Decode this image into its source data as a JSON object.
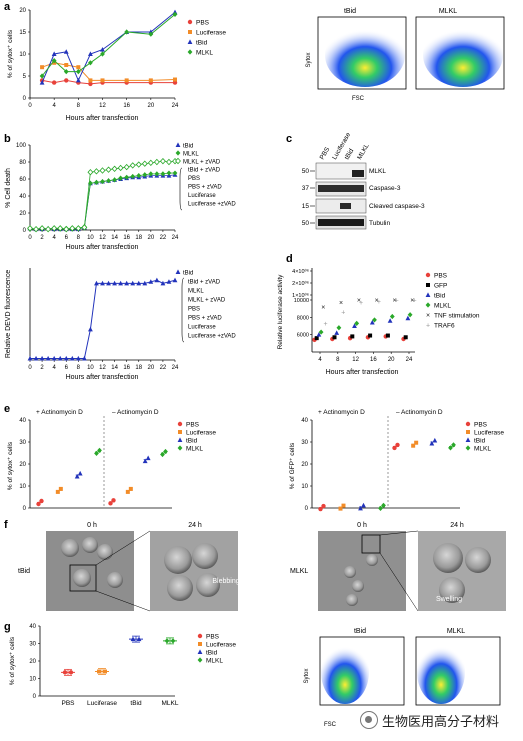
{
  "panel_letters": [
    "a",
    "b",
    "c",
    "d",
    "e",
    "f",
    "g"
  ],
  "colors": {
    "PBS": "#e8413a",
    "Luciferase": "#f28c28",
    "tBid": "#2233bb",
    "MLKL": "#2aa82a",
    "tnf": "#222222",
    "traf6": "#999999",
    "grey_axis": "#000000"
  },
  "panel_a": {
    "ylabel": "% of sytox⁺ cells",
    "xlabel": "Hours after transfection",
    "legend": [
      "PBS",
      "Luciferase",
      "tBid",
      "MLKL"
    ],
    "flow_titles": [
      "tBid",
      "MLKL"
    ],
    "flow_ylabel": "Sytox",
    "flow_xlabel": "FSC",
    "yticks": [
      "0",
      "5",
      "10",
      "15",
      "20"
    ],
    "xticks": [
      "0",
      "4",
      "8",
      "12",
      "16",
      "20",
      "24"
    ]
  },
  "panel_b": {
    "top_ylabel": "% Cell death",
    "bottom_ylabel": "Relative DEVD fluorescence",
    "xlabel": "Hours after transfection",
    "top_yticks": [
      "0",
      "20",
      "40",
      "60",
      "80",
      "100"
    ],
    "xticks": [
      "0",
      "2",
      "4",
      "6",
      "8",
      "10",
      "12",
      "14",
      "16",
      "18",
      "20",
      "22",
      "24"
    ],
    "top_legend_markers": [
      "tBid",
      "MLKL",
      "MLKL + zVAD"
    ],
    "top_legend_rest": [
      "tBid + zVAD",
      "PBS",
      "PBS + zVAD",
      "Luciferase",
      "Luciferase +zVAD"
    ],
    "bottom_legend": [
      "tBid",
      "tBid + zVAD",
      "MLKL",
      "MLKL + zVAD",
      "PBS",
      "PBS + zVAD",
      "Luciferase",
      "Luciferase +zVAD"
    ]
  },
  "panel_c": {
    "lanes": [
      "PBS",
      "Luciferase",
      "tBid",
      "MLKL"
    ],
    "mw": [
      "50",
      "37",
      "15",
      "50"
    ],
    "bands": [
      "MLKL",
      "Caspase-3",
      "Cleaved caspase-3",
      "Tubulin"
    ]
  },
  "panel_d": {
    "ylabel": "Relative luciferase activity",
    "xlabel": "Hours after transfection",
    "yticks": [
      "6000",
      "8000",
      "10000",
      "4×10⁰⁶",
      "2×10⁰⁶",
      "1×10⁰⁶"
    ],
    "xticks": [
      "4",
      "8",
      "12",
      "16",
      "20",
      "24"
    ],
    "legend": [
      "PBS",
      "GFP",
      "tBid",
      "MLKL",
      "TNF stimulation",
      "TRAF6"
    ]
  },
  "panel_e": {
    "left_ylabel": "% of sytox⁺ cells",
    "right_ylabel": "% of GFP⁺ cells",
    "left_headers": [
      "+ Actinomycin D",
      "– Actinomycin D"
    ],
    "right_headers": [
      "+ Actinomycin D",
      "– Actinomycin D"
    ],
    "left_yticks": [
      "0",
      "10",
      "20",
      "30",
      "40"
    ],
    "right_yticks": [
      "0",
      "10",
      "20",
      "30",
      "40"
    ],
    "legend_left": [
      "PBS",
      "Luciferase",
      "tBid",
      "MLKL"
    ],
    "legend_right": [
      "PBS",
      "Luciferase",
      "tBid",
      "MLKL"
    ]
  },
  "panel_f": {
    "left_time": [
      "0 h",
      "24 h"
    ],
    "right_time": [
      "0 h",
      "24 h"
    ],
    "left_label": "tBid",
    "right_label": "MLKL",
    "left_annotation": "Blebbing",
    "right_annotation": "Swelling"
  },
  "panel_g": {
    "ylabel": "% of sytox⁺ cells",
    "yticks": [
      "0",
      "10",
      "20",
      "30",
      "40"
    ],
    "categories": [
      "PBS",
      "Luciferase",
      "tBid",
      "MLKL"
    ],
    "legend": [
      "PBS",
      "Luciferase",
      "tBid",
      "MLKL"
    ],
    "flow_titles": [
      "tBid",
      "MLKL"
    ],
    "flow_ylabel": "Sytox",
    "flow_xlabel": "FSC"
  },
  "watermark": "生物医用高分子材料",
  "chart_data": [
    {
      "type": "line",
      "panel": "a",
      "x": [
        2,
        4,
        6,
        8,
        10,
        12,
        16,
        20,
        24
      ],
      "series": [
        {
          "name": "PBS",
          "values": [
            4,
            3.5,
            4,
            3.5,
            3.2,
            3.5,
            3.5,
            3.5,
            3.5
          ]
        },
        {
          "name": "Luciferase",
          "values": [
            7,
            8,
            7.5,
            7,
            4,
            4,
            4,
            4,
            4.2
          ]
        },
        {
          "name": "tBid",
          "values": [
            3.5,
            10,
            10.5,
            4,
            10,
            11,
            15,
            15,
            19.5
          ]
        },
        {
          "name": "MLKL",
          "values": [
            5,
            8.5,
            6,
            6,
            8,
            10,
            15,
            14.5,
            19
          ]
        }
      ],
      "xlabel": "Hours after transfection",
      "ylabel": "% of sytox⁺ cells",
      "ylim": [
        0,
        20
      ],
      "xlim": [
        0,
        24
      ]
    },
    {
      "type": "line",
      "panel": "b-top",
      "x": [
        0,
        1,
        2,
        3,
        4,
        5,
        6,
        7,
        8,
        9,
        10,
        11,
        12,
        13,
        14,
        15,
        16,
        17,
        18,
        19,
        20,
        21,
        22,
        23,
        24
      ],
      "series": [
        {
          "name": "tBid",
          "values": [
            2,
            1,
            1,
            2,
            1,
            1,
            1,
            1,
            1,
            3,
            55,
            56,
            57,
            58,
            59,
            60,
            61,
            62,
            62,
            63,
            64,
            64,
            64,
            64,
            65
          ]
        },
        {
          "name": "MLKL",
          "values": [
            1,
            1,
            2,
            1,
            2,
            1,
            2,
            1,
            2,
            4,
            55,
            56,
            57,
            58,
            59,
            61,
            62,
            63,
            64,
            65,
            66,
            66,
            66,
            67,
            67
          ]
        },
        {
          "name": "MLKL + zVAD",
          "values": [
            2,
            1,
            2,
            1,
            2,
            2,
            1,
            2,
            2,
            3,
            68,
            69,
            70,
            71,
            72,
            73,
            74,
            76,
            77,
            78,
            79,
            80,
            81,
            80,
            81
          ]
        }
      ],
      "xlabel": "Hours after transfection",
      "ylabel": "% Cell death",
      "ylim": [
        0,
        100
      ],
      "xlim": [
        0,
        24
      ]
    },
    {
      "type": "line",
      "panel": "b-bottom",
      "x": [
        0,
        1,
        2,
        3,
        4,
        5,
        6,
        7,
        8,
        9,
        10,
        11,
        12,
        13,
        14,
        15,
        16,
        17,
        18,
        19,
        20,
        21,
        22,
        23,
        24
      ],
      "series": [
        {
          "name": "tBid",
          "values": [
            0.05,
            0.05,
            0.05,
            0.05,
            0.05,
            0.05,
            0.05,
            0.05,
            0.05,
            0.05,
            1.0,
            2.5,
            2.5,
            2.5,
            2.5,
            2.5,
            2.5,
            2.5,
            2.5,
            2.5,
            2.55,
            2.6,
            2.5,
            2.55,
            2.6
          ]
        }
      ],
      "xlabel": "Hours after transfection",
      "ylabel": "Relative DEVD fluorescence",
      "xlim": [
        0,
        24
      ]
    },
    {
      "type": "scatter",
      "panel": "d",
      "x": [
        4,
        8,
        12,
        16,
        20,
        24
      ],
      "series": [
        {
          "name": "PBS",
          "values": [
            5400,
            5500,
            5600,
            5700,
            5800,
            5500
          ]
        },
        {
          "name": "GFP",
          "values": [
            5600,
            5700,
            5800,
            5900,
            5900,
            5700
          ]
        },
        {
          "name": "tBid",
          "values": [
            6000,
            6200,
            7000,
            7400,
            7600,
            7900
          ]
        },
        {
          "name": "MLKL",
          "values": [
            6300,
            6800,
            7300,
            7700,
            8100,
            8300
          ]
        },
        {
          "name": "TNF stimulation",
          "values": [
            9200,
            9700,
            10000,
            10000,
            10000,
            10000
          ]
        },
        {
          "name": "TRAF6",
          "values": [
            7300,
            8600,
            9700,
            9800,
            10000,
            10000
          ]
        }
      ],
      "xlabel": "Hours after transfection",
      "ylabel": "Relative luciferase activity"
    },
    {
      "type": "scatter",
      "panel": "e-left",
      "categories": [
        "PBS",
        "Luciferase",
        "tBid",
        "MLKL"
      ],
      "series": [
        {
          "name": "+ Actinomycin D",
          "values": [
            2.5,
            8,
            15,
            25.5
          ]
        },
        {
          "name": "– Actinomycin D",
          "values": [
            2.8,
            8,
            22,
            25
          ]
        }
      ],
      "ylabel": "% of sytox⁺ cells",
      "ylim": [
        0,
        40
      ]
    },
    {
      "type": "scatter",
      "panel": "e-right",
      "categories": [
        "PBS",
        "Luciferase",
        "tBid",
        "MLKL"
      ],
      "series": [
        {
          "name": "+ Actinomycin D",
          "values": [
            0.2,
            0.4,
            0.5,
            0.5
          ]
        },
        {
          "name": "– Actinomycin D",
          "values": [
            28,
            29,
            30,
            28
          ]
        }
      ],
      "ylabel": "% of GFP⁺ cells",
      "ylim": [
        0,
        40
      ]
    },
    {
      "type": "scatter",
      "panel": "g",
      "categories": [
        "PBS",
        "Luciferase",
        "tBid",
        "MLKL"
      ],
      "values": [
        13.5,
        14,
        32.5,
        31.5
      ],
      "ylabel": "% of sytox⁺ cells",
      "ylim": [
        0,
        40
      ]
    }
  ]
}
